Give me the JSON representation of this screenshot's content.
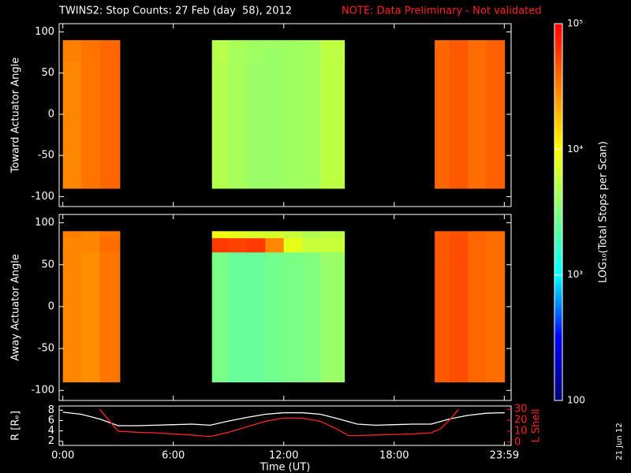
{
  "header": {
    "title": "TWINS2: Stop Counts: 27 Feb (day  58), 2012",
    "note": "NOTE: Data Preliminary - Not validated",
    "date_stamp": "21 Jun 12"
  },
  "colorbar": {
    "label": "LOG₁₀(Total Stops per Scan)",
    "lim": [
      100,
      100000
    ],
    "log": true,
    "ticks": [
      {
        "value": 100000,
        "label": "10⁵"
      },
      {
        "value": 10000,
        "label": "10⁴"
      },
      {
        "value": 1000,
        "label": "10³"
      },
      100
    ],
    "colormap": [
      "#000070",
      "#0000ff",
      "#00ffff",
      "#80ff80",
      "#ffff00",
      "#ff8000",
      "#ff0000"
    ]
  },
  "chart_data": [
    {
      "type": "heatmap",
      "ylabel": "Toward Actuator Angle",
      "xlim": [
        -0.2,
        24.35
      ],
      "ylim": [
        -112,
        110
      ],
      "yticks": [
        -100,
        -50,
        0,
        50,
        100
      ],
      "xbins": [
        0,
        1,
        2,
        3.1,
        8.1,
        9,
        10,
        11,
        12,
        13,
        14,
        15.3,
        20.2,
        21,
        22,
        23,
        24
      ],
      "ybins": [
        -90,
        65,
        82,
        90
      ],
      "values": [
        [
          30000,
          35000,
          40000,
          null,
          5000,
          4500,
          4000,
          4000,
          4200,
          4300,
          5500,
          null,
          40000,
          45000,
          38000,
          42000
        ],
        [
          32000,
          35000,
          40000,
          null,
          5200,
          4500,
          4200,
          4000,
          4200,
          4300,
          5500,
          null,
          40000,
          45000,
          38000,
          42000
        ],
        [
          32000,
          36000,
          40000,
          null,
          5200,
          4600,
          4200,
          4100,
          4200,
          4400,
          5600,
          null,
          40000,
          45000,
          38000,
          42000
        ]
      ]
    },
    {
      "type": "heatmap",
      "ylabel": "Away Actuator Angle",
      "xlim": [
        -0.2,
        24.35
      ],
      "ylim": [
        -112,
        110
      ],
      "yticks": [
        -100,
        -50,
        0,
        50,
        100
      ],
      "xbins": [
        0,
        1,
        2,
        3.1,
        8.1,
        9,
        10,
        11,
        12,
        13,
        14,
        15.3,
        20.2,
        21,
        22,
        23,
        24
      ],
      "ybins": [
        -90,
        65,
        82,
        90
      ],
      "values": [
        [
          30000,
          28000,
          35000,
          null,
          3000,
          2500,
          2500,
          2800,
          3000,
          3200,
          4000,
          null,
          45000,
          50000,
          40000,
          38000
        ],
        [
          30000,
          30000,
          38000,
          null,
          60000,
          55000,
          60000,
          30000,
          8000,
          6000,
          6000,
          null,
          45000,
          50000,
          40000,
          38000
        ],
        [
          32000,
          30000,
          35000,
          null,
          9000,
          8000,
          7000,
          7000,
          6000,
          5000,
          5500,
          null,
          45000,
          48000,
          40000,
          38000
        ]
      ]
    },
    {
      "type": "line",
      "xlabel": "Time (UT)",
      "ylabel": "R [Rₑ]",
      "y2label": "L Shell",
      "xlim": [
        -0.2,
        24.35
      ],
      "ylim": [
        1.2,
        8.8
      ],
      "y2lim": [
        -3,
        33
      ],
      "xticks": [
        {
          "value": 0,
          "label": "0:00"
        },
        {
          "value": 6,
          "label": "6:00"
        },
        {
          "value": 12,
          "label": "12:00"
        },
        {
          "value": 18,
          "label": "18:00"
        },
        {
          "value": 23.98,
          "label": "23:59"
        }
      ],
      "yticks": [
        2,
        4,
        6,
        8
      ],
      "y2ticks": [
        0,
        10,
        20,
        30
      ],
      "series": [
        {
          "name": "R",
          "color": "#ffffff",
          "x": [
            0,
            1,
            2,
            3,
            4,
            5,
            6,
            7,
            8,
            9,
            10,
            11,
            12,
            13,
            14,
            15,
            16,
            17,
            18,
            19,
            20,
            21,
            22,
            23,
            24
          ],
          "values": [
            7.6,
            7.2,
            6.3,
            5.0,
            5.0,
            5.1,
            5.2,
            5.3,
            5.1,
            5.9,
            6.6,
            7.2,
            7.5,
            7.5,
            7.2,
            6.3,
            5.3,
            5.1,
            5.2,
            5.3,
            5.3,
            6.3,
            7.0,
            7.4,
            7.5
          ]
        },
        {
          "name": "L Shell",
          "color": "#ff2020",
          "axis": "y2",
          "x": [
            2.0,
            3,
            4,
            5,
            6,
            7,
            8,
            9,
            10,
            11,
            12,
            13,
            14,
            15,
            15.5,
            16,
            17,
            18,
            19,
            20,
            20.5,
            21,
            21.5
          ],
          "values": [
            30,
            10,
            9,
            8.5,
            7.5,
            6.5,
            5,
            9,
            14,
            19,
            22,
            22,
            19,
            11,
            6,
            6,
            6.5,
            7,
            7.5,
            8.5,
            12,
            20,
            30
          ]
        }
      ]
    }
  ]
}
